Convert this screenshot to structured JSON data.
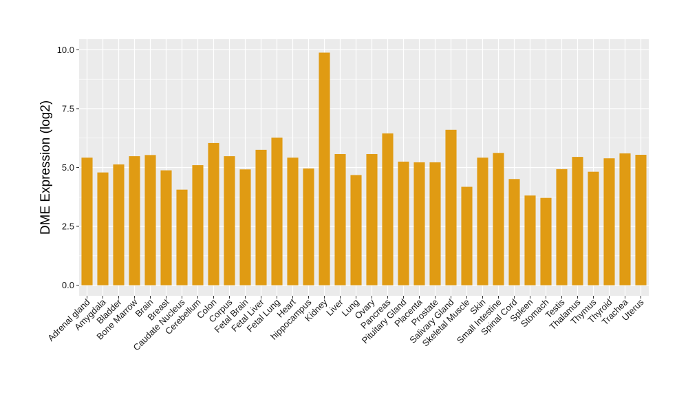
{
  "chart_data": {
    "type": "bar",
    "ylabel": "DME Expression (log2)",
    "xlabel": "",
    "ylim": [
      -0.45,
      10.45
    ],
    "yticks": [
      0.0,
      2.5,
      5.0,
      7.5,
      10.0
    ],
    "ytick_labels": [
      "0.0",
      "2.5",
      "5.0",
      "7.5",
      "10.0"
    ],
    "grid": true,
    "legend": "none",
    "bar_color": "#E09B13",
    "panel_color": "#EBEBEB",
    "grid_color": "#FFFFFF",
    "categories": [
      "Adrenal gland",
      "Amygdala",
      "Bladder",
      "Bone Marrow",
      "Brain",
      "Breast",
      "Caudate Nucleus",
      "Cerebellum",
      "Colon",
      "Corpus",
      "Fetal Brain",
      "Fetal Liver",
      "Fetal Lung",
      "Heart",
      "hippocampus",
      "Kidney",
      "Liver",
      "Lung",
      "Ovary",
      "Pancreas",
      "Pituitary Gland",
      "Placenta",
      "Prostate",
      "Salivary Gland",
      "Skeletal Muscle",
      "Skin",
      "Small Intestine",
      "Spinal Cord",
      "Spleen",
      "Stomach",
      "Testis",
      "Thalamus",
      "Thymus",
      "Thyroid",
      "Trachea",
      "Uterus"
    ],
    "values": [
      5.42,
      4.79,
      5.13,
      5.48,
      5.53,
      4.88,
      4.06,
      5.1,
      6.04,
      5.48,
      4.92,
      5.75,
      6.27,
      5.42,
      4.96,
      9.88,
      5.57,
      4.68,
      5.57,
      6.45,
      5.25,
      5.22,
      5.22,
      6.6,
      4.18,
      5.42,
      5.62,
      4.51,
      3.81,
      3.71,
      4.93,
      5.45,
      4.82,
      5.39,
      5.6,
      5.54
    ]
  }
}
